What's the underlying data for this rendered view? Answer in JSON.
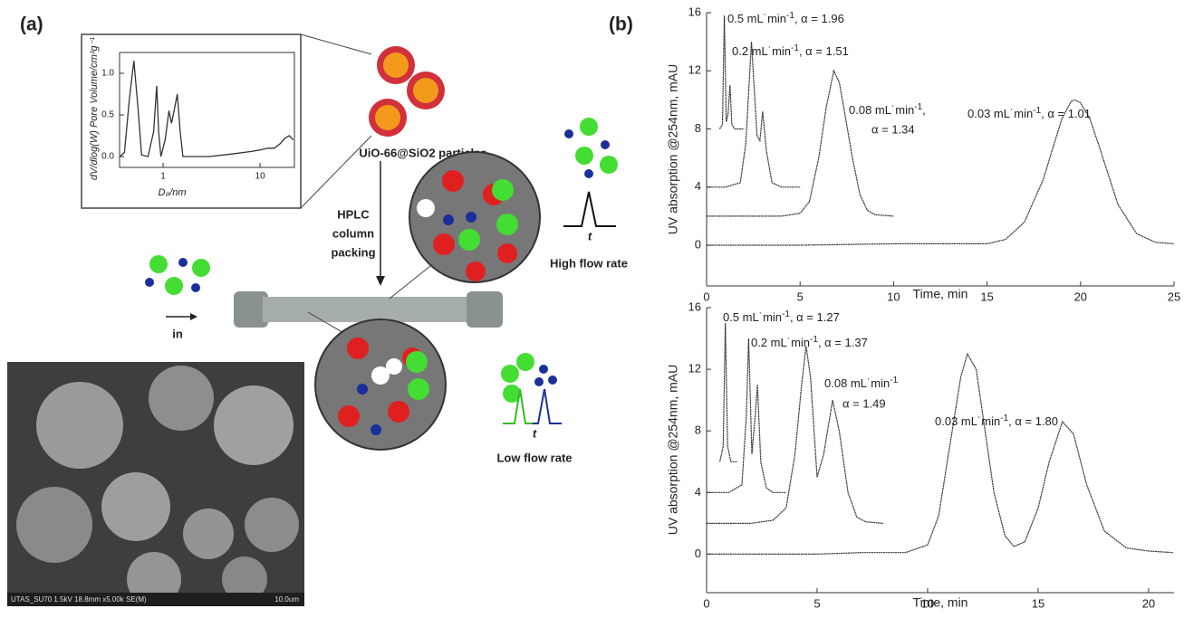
{
  "panel_a": {
    "label": "(a)",
    "particles_label": "UiO-66@SiO2 particles",
    "packing_label": [
      "HPLC",
      "column",
      "packing"
    ],
    "inlet_label": "in",
    "high_flow_label": "High flow rate",
    "low_flow_label": "Low flow rate",
    "time_symbol": "t",
    "sem_caption": "UTAS_SU70 1.5kV 18.8mm x5.00k SE(M)",
    "sem_scale": "10.0um"
  },
  "panel_b": {
    "label": "(b)"
  },
  "chart_data": [
    {
      "type": "line",
      "ylabel": "dV/dlog(W) Pore Volume/cm³g⁻¹",
      "xlabel": "Dₚ/nm",
      "xscale": "log",
      "color": "#333333",
      "xlim": [
        0.356,
        22.6
      ],
      "ylim": [
        -0.13,
        1.25
      ],
      "xticks": [
        1,
        10
      ],
      "yticks": [
        {
          "value": 0,
          "label": "0.0"
        },
        {
          "value": 0.5,
          "label": "0.5"
        },
        {
          "value": 1,
          "label": "1.0"
        }
      ],
      "x": [
        0.36,
        0.4,
        0.45,
        0.5,
        0.55,
        0.6,
        0.7,
        0.8,
        0.86,
        0.9,
        0.95,
        1.05,
        1.15,
        1.22,
        1.3,
        1.4,
        1.5,
        1.6,
        3,
        5,
        8,
        10,
        12,
        14,
        16,
        18,
        20,
        22
      ],
      "values": [
        0,
        0.05,
        0.7,
        1.15,
        0.6,
        0.02,
        0,
        0.3,
        0.85,
        0.3,
        0,
        0.2,
        0.55,
        0.4,
        0.55,
        0.75,
        0.3,
        0,
        0,
        0.03,
        0.06,
        0.08,
        0.1,
        0.1,
        0.15,
        0.22,
        0.25,
        0.2
      ]
    },
    {
      "type": "line",
      "ylabel": "UV absorption @254nm, mAU",
      "xlabel": "Time, min",
      "color": "#333333",
      "xlim": [
        0,
        25
      ],
      "ylim": [
        -2.8,
        16
      ],
      "xticks": [
        0,
        5,
        10,
        15,
        20,
        25
      ],
      "yticks": [
        0,
        4,
        8,
        12,
        16
      ],
      "series": [
        {
          "label": {
            "main": "0.5 mL˙min",
            "sup": "-1",
            "tail": ", α = 1.96"
          },
          "x": [
            0.7,
            0.85,
            0.95,
            1.05,
            1.15,
            1.25,
            1.35,
            1.5,
            2
          ],
          "values": [
            8,
            8.3,
            15.8,
            8.5,
            9,
            11,
            8.3,
            8,
            8
          ]
        },
        {
          "label": {
            "main": "0.2 mL˙min",
            "sup": "-1",
            "tail": ", α = 1.51"
          },
          "x": [
            0,
            1,
            1.8,
            2.1,
            2.4,
            2.7,
            2.85,
            3.0,
            3.2,
            3.5,
            4,
            5
          ],
          "values": [
            4,
            4,
            4.3,
            7,
            14,
            7.5,
            7.2,
            9.2,
            6.5,
            4.3,
            4,
            4
          ]
        },
        {
          "label": {
            "main": "0.08 mL˙min",
            "sup": "-1",
            "tail": ",",
            "line2": "α = 1.34"
          },
          "x": [
            0,
            2,
            4,
            5,
            5.5,
            6,
            6.4,
            6.8,
            7.1,
            7.4,
            7.8,
            8.2,
            8.6,
            9,
            10
          ],
          "values": [
            2,
            2,
            2,
            2.2,
            3,
            6,
            9.5,
            12,
            11.2,
            9,
            6,
            3.5,
            2.4,
            2.1,
            2
          ]
        },
        {
          "label": {
            "main": "0.03 mL˙min",
            "sup": "-1",
            "tail": ", α = 1.01"
          },
          "x": [
            0,
            5,
            10,
            15,
            16,
            17,
            18,
            18.5,
            19,
            19.5,
            19.7,
            20,
            20.5,
            21,
            22,
            23,
            24,
            25
          ],
          "values": [
            0,
            0,
            0.1,
            0.1,
            0.4,
            1.6,
            4.5,
            6.6,
            8.7,
            9.9,
            10,
            9.8,
            8.7,
            6.8,
            2.8,
            0.8,
            0.2,
            0.1
          ]
        }
      ]
    },
    {
      "type": "line",
      "ylabel": "UV absorption @254nm, mAU",
      "xlabel": "Time, min",
      "color": "#333333",
      "xlim": [
        0,
        21.15
      ],
      "ylim": [
        -2.5,
        16
      ],
      "xticks": [
        0,
        5,
        10,
        15,
        20
      ],
      "yticks": [
        0,
        4,
        8,
        12,
        16
      ],
      "series": [
        {
          "label": {
            "main": "0.5 mL˙min",
            "sup": "-1",
            "tail": ", α = 1.27"
          },
          "x": [
            0.6,
            0.75,
            0.85,
            0.95,
            1.1,
            1.4
          ],
          "values": [
            6,
            7,
            15,
            7,
            6,
            6
          ]
        },
        {
          "label": {
            "main": "0.2 mL˙min",
            "sup": "-1",
            "tail": ", α = 1.37"
          },
          "x": [
            0,
            1,
            1.6,
            1.8,
            1.9,
            2.05,
            2.2,
            2.3,
            2.45,
            2.7,
            3,
            3.6
          ],
          "values": [
            4,
            4,
            4.5,
            9,
            14,
            6.5,
            9,
            11,
            6,
            4.3,
            4,
            4
          ]
        },
        {
          "label": {
            "main": "0.08 mL˙min",
            "sup": "-1",
            "line2": "α = 1.49"
          },
          "x": [
            0,
            2,
            3,
            3.6,
            4,
            4.3,
            4.5,
            4.7,
            5.0,
            5.3,
            5.7,
            6.0,
            6.4,
            6.8,
            7.2,
            8
          ],
          "values": [
            2,
            2,
            2.2,
            3,
            6.5,
            11,
            13.5,
            11.5,
            5,
            6.5,
            10,
            8,
            4,
            2.4,
            2.1,
            2
          ]
        },
        {
          "label": {
            "main": "0.03 mL˙min",
            "sup": "-1",
            "tail": ", α = 1.80"
          },
          "x": [
            0,
            5,
            7,
            9,
            10,
            10.5,
            11,
            11.5,
            11.8,
            12.2,
            12.6,
            13,
            13.5,
            13.9,
            14.4,
            15,
            15.5,
            16.1,
            16.6,
            17.2,
            18,
            19,
            20,
            21.1
          ],
          "values": [
            0,
            0,
            0.1,
            0.1,
            0.6,
            2.5,
            7,
            11.5,
            13,
            12,
            8,
            4,
            1.2,
            0.5,
            0.8,
            3,
            6,
            8.6,
            7.8,
            4.5,
            1.5,
            0.4,
            0.2,
            0.1
          ]
        }
      ]
    }
  ]
}
